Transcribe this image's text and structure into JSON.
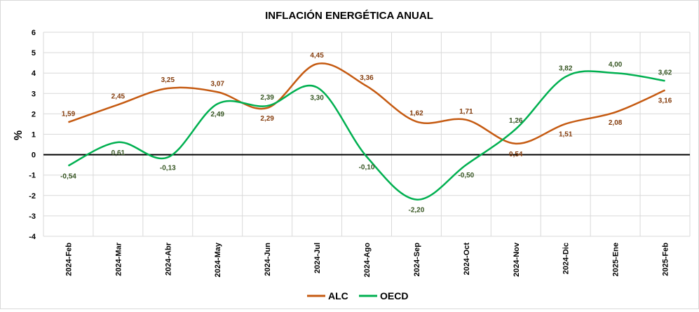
{
  "chart_data": {
    "type": "line",
    "title": "INFLACIÓN ENERGÉTICA ANUAL",
    "ylabel": "%",
    "xlabel": "",
    "categories": [
      "2024-Feb",
      "2024-Mar",
      "2024-Abr",
      "2024-May",
      "2024-Jun",
      "2024-Jul",
      "2024-Ago",
      "2024-Sep",
      "2024-Oct",
      "2024-Nov",
      "2024-Dic",
      "2025-Ene",
      "2025-Feb"
    ],
    "ylim": [
      -4,
      6
    ],
    "yticks": [
      "-4",
      "-3",
      "-2",
      "-1",
      "0",
      "1",
      "2",
      "3",
      "4",
      "5",
      "6"
    ],
    "grid": true,
    "legend_position": "bottom-center",
    "series": [
      {
        "name": "ALC",
        "color": "#C55A11",
        "label_color": "#843C0C",
        "values": [
          1.59,
          2.45,
          3.25,
          3.07,
          2.29,
          4.45,
          3.36,
          1.62,
          1.71,
          0.54,
          1.51,
          2.08,
          3.16
        ],
        "labels": [
          "1,59",
          "2,45",
          "3,25",
          "3,07",
          "2,29",
          "4,45",
          "3,36",
          "1,62",
          "1,71",
          "0,54",
          "1,51",
          "2,08",
          "3,16"
        ]
      },
      {
        "name": "OECD",
        "color": "#00B050",
        "label_color": "#375623",
        "values": [
          -0.54,
          0.61,
          -0.13,
          2.49,
          2.39,
          3.3,
          -0.1,
          -2.2,
          -0.5,
          1.26,
          3.82,
          4.0,
          3.62
        ],
        "labels": [
          "-0,54",
          "0,61",
          "-0,13",
          "2,49",
          "2,39",
          "3,30",
          "-0,10",
          "-2,20",
          "-0,50",
          "1,26",
          "3,82",
          "4,00",
          "3,62"
        ]
      }
    ]
  }
}
